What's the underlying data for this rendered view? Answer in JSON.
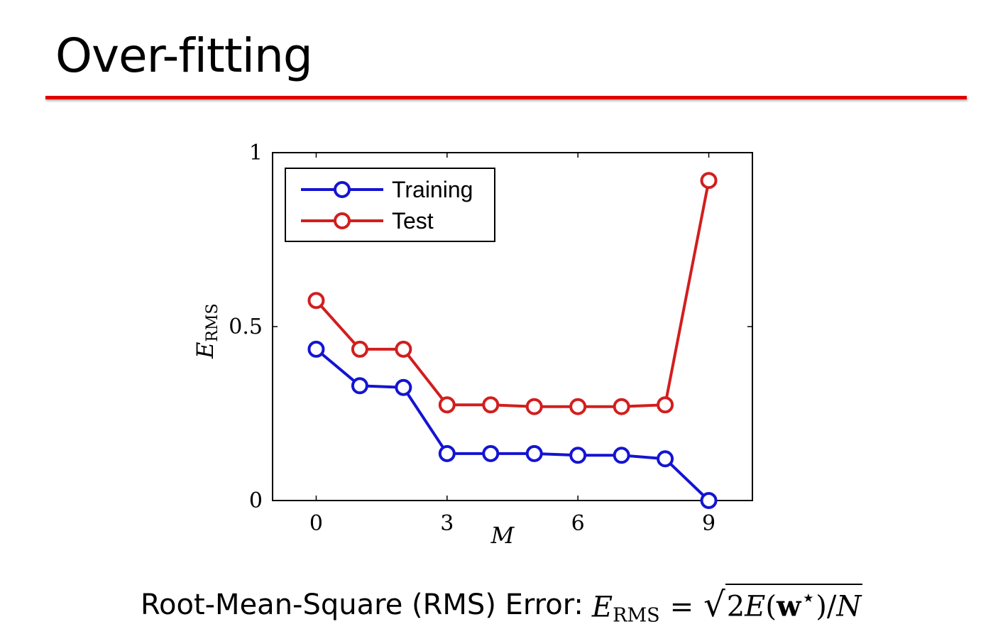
{
  "slide": {
    "title": "Over-fitting",
    "formula_label": "Root-Mean-Square (RMS) Error:",
    "formula": {
      "lhs_var": "E",
      "lhs_sub": "RMS",
      "equals": "=",
      "sqrt_content_prefix": "2",
      "sqrt_E": "E",
      "sqrt_open": "(",
      "sqrt_w": "w",
      "sqrt_star": "⋆",
      "sqrt_close": ")/",
      "sqrt_N": "N"
    }
  },
  "colors": {
    "title_rule": "#e00000",
    "training": "#1414d2",
    "test": "#d21e1e",
    "axis": "#000000"
  },
  "chart_data": {
    "type": "line",
    "title": "",
    "xlabel": "M",
    "ylabel_main": "E",
    "ylabel_sub": "RMS",
    "xlim": [
      -1,
      10
    ],
    "ylim": [
      0,
      1
    ],
    "xticks": [
      0,
      3,
      6,
      9
    ],
    "yticks": [
      0,
      0.5,
      1
    ],
    "ytick_labels": [
      "0",
      "0.5",
      "1"
    ],
    "grid": false,
    "legend_position": "top-left",
    "x": [
      0,
      1,
      2,
      3,
      4,
      5,
      6,
      7,
      8,
      9
    ],
    "series": [
      {
        "name": "Training",
        "color": "#1414d2",
        "marker": "circle",
        "values": [
          0.435,
          0.33,
          0.325,
          0.135,
          0.135,
          0.135,
          0.13,
          0.13,
          0.12,
          0.0
        ]
      },
      {
        "name": "Test",
        "color": "#d21e1e",
        "marker": "circle",
        "values": [
          0.575,
          0.435,
          0.435,
          0.275,
          0.275,
          0.27,
          0.27,
          0.27,
          0.275,
          0.92
        ]
      }
    ]
  }
}
